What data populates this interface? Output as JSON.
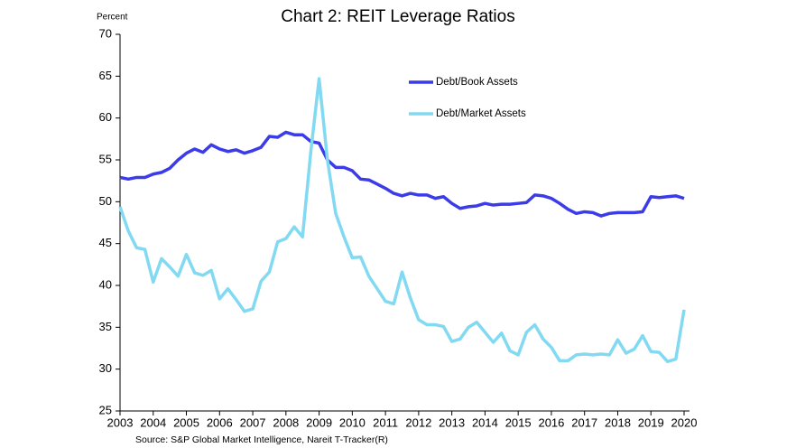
{
  "chart_data": {
    "type": "line",
    "title": "Chart 2: REIT Leverage Ratios",
    "y_label": "Percent",
    "source": "Source: S&P Global Market Intelligence, Nareit T-Tracker(R)",
    "x": [
      2003,
      2003.25,
      2003.5,
      2003.75,
      2004,
      2004.25,
      2004.5,
      2004.75,
      2005,
      2005.25,
      2005.5,
      2005.75,
      2006,
      2006.25,
      2006.5,
      2006.75,
      2007,
      2007.25,
      2007.5,
      2007.75,
      2008,
      2008.25,
      2008.5,
      2008.75,
      2009,
      2009.25,
      2009.5,
      2009.75,
      2010,
      2010.25,
      2010.5,
      2010.75,
      2011,
      2011.25,
      2011.5,
      2011.75,
      2012,
      2012.25,
      2012.5,
      2012.75,
      2013,
      2013.25,
      2013.5,
      2013.75,
      2014,
      2014.25,
      2014.5,
      2014.75,
      2015,
      2015.25,
      2015.5,
      2015.75,
      2016,
      2016.25,
      2016.5,
      2016.75,
      2017,
      2017.25,
      2017.5,
      2017.75,
      2018,
      2018.25,
      2018.5,
      2018.75,
      2019,
      2019.25,
      2019.5,
      2019.75,
      2020
    ],
    "series": [
      {
        "name": "Debt/Book Assets",
        "color": "#3b3bea",
        "values": [
          52.9,
          52.7,
          52.9,
          52.9,
          53.3,
          53.5,
          54.0,
          55.0,
          55.8,
          56.3,
          55.9,
          56.8,
          56.3,
          56.0,
          56.2,
          55.8,
          56.1,
          56.5,
          57.8,
          57.7,
          58.3,
          58.0,
          58.0,
          57.2,
          57.0,
          55.0,
          54.1,
          54.1,
          53.7,
          52.7,
          52.6,
          52.1,
          51.6,
          51.0,
          50.7,
          51.0,
          50.8,
          50.8,
          50.4,
          50.6,
          49.8,
          49.2,
          49.4,
          49.5,
          49.8,
          49.6,
          49.7,
          49.7,
          49.8,
          49.9,
          50.8,
          50.7,
          50.4,
          49.8,
          49.1,
          48.6,
          48.8,
          48.7,
          48.3,
          48.6,
          48.7,
          48.7,
          48.7,
          48.8,
          50.6,
          50.5,
          50.6,
          50.7,
          50.4
        ]
      },
      {
        "name": "Debt/Market Assets",
        "color": "#82d9f2",
        "values": [
          49.4,
          46.5,
          44.5,
          44.3,
          40.4,
          43.2,
          42.2,
          41.1,
          43.7,
          41.5,
          41.2,
          41.8,
          38.4,
          39.6,
          38.3,
          36.9,
          37.2,
          40.5,
          41.6,
          45.2,
          45.6,
          47.0,
          45.8,
          56.0,
          64.7,
          55.0,
          48.6,
          45.8,
          43.3,
          43.4,
          41.1,
          39.6,
          38.1,
          37.8,
          41.6,
          38.5,
          35.9,
          35.3,
          35.3,
          35.1,
          33.3,
          33.6,
          35.0,
          35.6,
          34.4,
          33.2,
          34.3,
          32.2,
          31.7,
          34.4,
          35.3,
          33.6,
          32.6,
          31.0,
          31.0,
          31.7,
          31.8,
          31.7,
          31.8,
          31.7,
          33.5,
          31.9,
          32.4,
          34.0,
          32.1,
          32.0,
          30.9,
          31.2,
          37.1
        ]
      }
    ],
    "xlim": [
      2003,
      2020
    ],
    "xticks": [
      2003,
      2004,
      2005,
      2006,
      2007,
      2008,
      2009,
      2010,
      2011,
      2012,
      2013,
      2014,
      2015,
      2016,
      2017,
      2018,
      2019,
      2020
    ],
    "ylim": [
      25,
      70
    ],
    "yticks": [
      25,
      30,
      35,
      40,
      45,
      50,
      55,
      60,
      65,
      70
    ],
    "grid": false,
    "legend": "upper right"
  }
}
